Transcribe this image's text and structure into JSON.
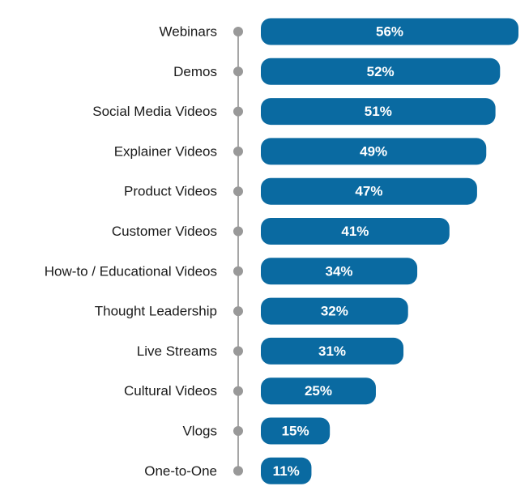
{
  "chart_data": {
    "type": "bar",
    "orientation": "horizontal",
    "categories": [
      "Webinars",
      "Demos",
      "Social Media Videos",
      "Explainer Videos",
      "Product Videos",
      "Customer Videos",
      "How-to / Educational Videos",
      "Thought Leadership",
      "Live Streams",
      "Cultural Videos",
      "Vlogs",
      "One-to-One"
    ],
    "values": [
      56,
      52,
      51,
      49,
      47,
      41,
      34,
      32,
      31,
      25,
      15,
      11
    ],
    "value_labels": [
      "56%",
      "52%",
      "51%",
      "49%",
      "47%",
      "41%",
      "34%",
      "32%",
      "31%",
      "25%",
      "15%",
      "11%"
    ],
    "xlim": [
      0,
      56
    ],
    "grid": false,
    "bar_color": "#0a6aa1",
    "marker_color": "#999999"
  }
}
